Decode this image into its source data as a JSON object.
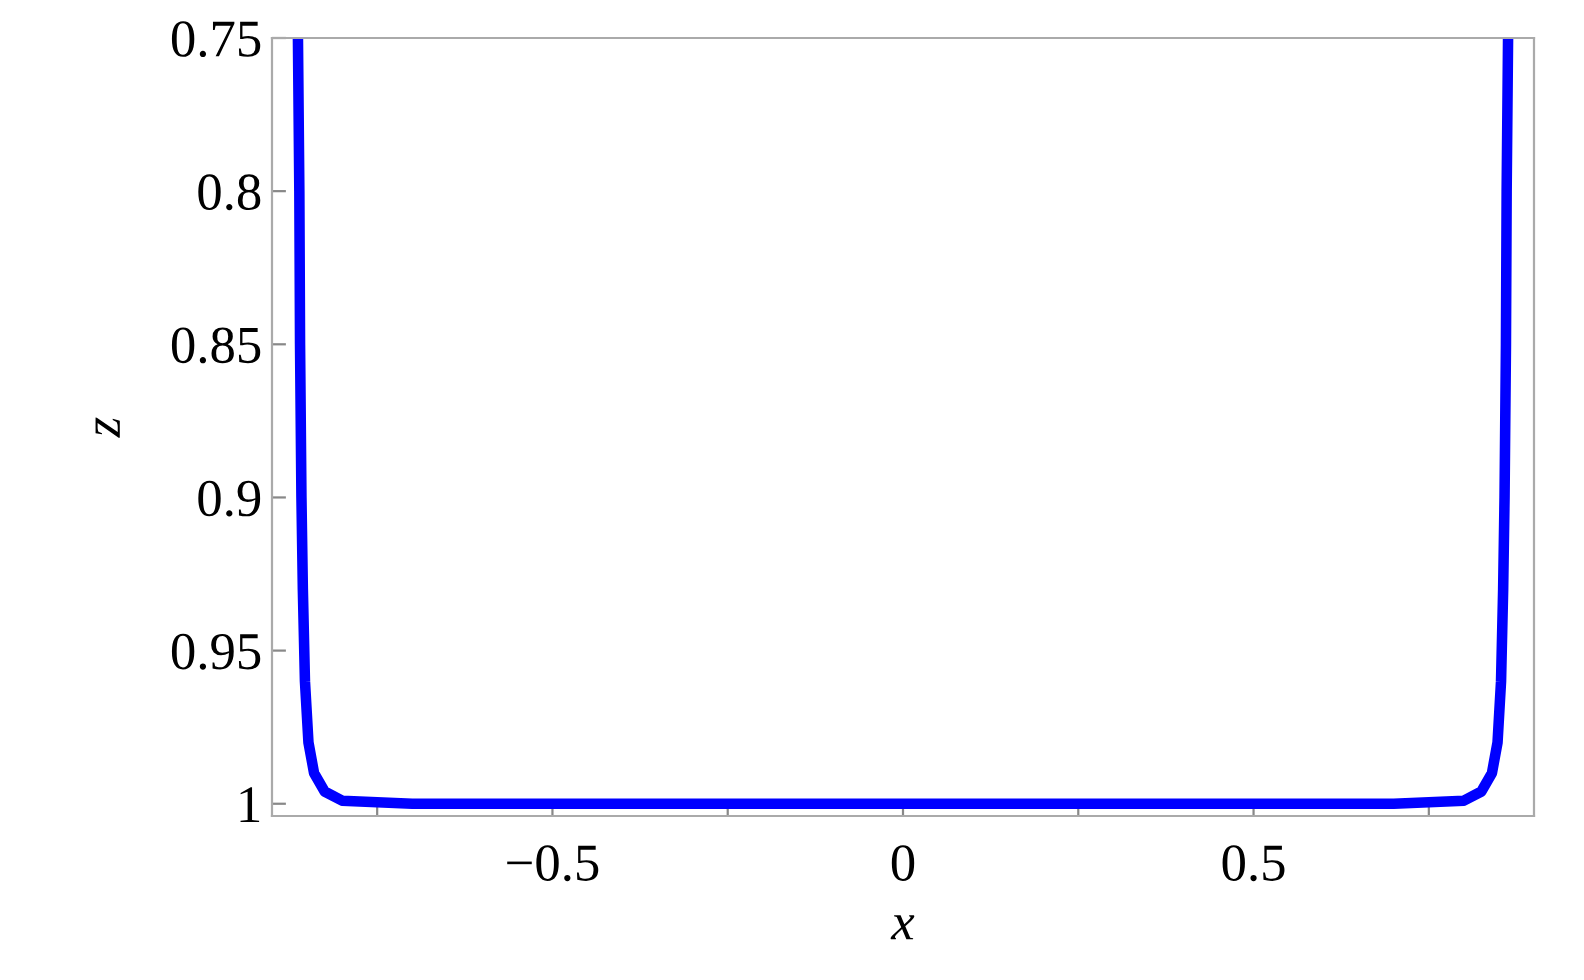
{
  "chart_data": {
    "type": "line",
    "xlabel": "x",
    "ylabel": "z",
    "x": [
      -0.863,
      -0.861,
      -0.86,
      -0.858,
      -0.856,
      -0.853,
      -0.848,
      -0.84,
      -0.825,
      -0.8,
      -0.7,
      -0.5,
      0,
      0.5,
      0.7,
      0.8,
      0.825,
      0.84,
      0.848,
      0.853,
      0.856,
      0.858,
      0.86,
      0.861,
      0.863
    ],
    "series": [
      {
        "color": "#0000ff",
        "values": [
          0.75,
          0.8,
          0.85,
          0.9,
          0.93,
          0.96,
          0.98,
          0.99,
          0.996,
          0.999,
          1.0,
          1.0,
          1.0,
          1.0,
          1.0,
          0.999,
          0.996,
          0.99,
          0.98,
          0.96,
          0.93,
          0.9,
          0.85,
          0.8,
          0.75
        ]
      }
    ],
    "xlim": [
      -0.9,
      0.9
    ],
    "ylim": [
      1.004,
      0.75
    ],
    "xticks": [
      {
        "value": -0.75,
        "label": null
      },
      -0.5,
      {
        "value": -0.25,
        "label": null
      },
      0,
      {
        "value": 0.25,
        "label": null
      },
      0.5,
      {
        "value": 0.75,
        "label": null
      }
    ],
    "yticks": [
      0.75,
      0.8,
      0.85,
      0.9,
      0.95,
      1
    ],
    "grid": false,
    "marker": "none",
    "line_style": "solid"
  }
}
